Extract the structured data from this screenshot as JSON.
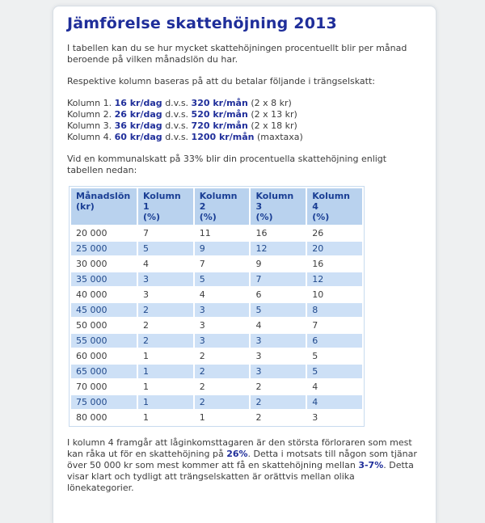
{
  "colors": {
    "page_bg": "#eef0f1",
    "card_bg": "#ffffff",
    "card_border": "#d8dfe5",
    "title_navy": "#1f2e9a",
    "accent_navy": "#1f2e9a",
    "body_text": "#3c3c3c",
    "table_border": "#c8dbef",
    "table_header_bg": "#b9d2ee",
    "table_header_text": "#1a3e94",
    "table_row_alt_bg": "#cde0f6",
    "table_row_alt_text": "#20498c",
    "row_text": "#3d3d3d"
  },
  "article": {
    "title": "Jämförelse skattehöjning 2013",
    "intro_1": "I tabellen kan du se hur mycket skattehöjningen procentuellt blir per månad beroende på vilken månadslön du har.",
    "intro_2": "Respektive kolumn baseras på att du betalar följande i trängselskatt:",
    "kolumn_lines": [
      {
        "label": "Kolumn 1.",
        "daily": "16 kr/dag",
        "connector": "d.v.s.",
        "monthly": "320 kr/mån",
        "note": "(2 x 8 kr)"
      },
      {
        "label": "Kolumn 2.",
        "daily": "26 kr/dag",
        "connector": "d.v.s.",
        "monthly": "520 kr/mån",
        "note": "(2 x 13 kr)"
      },
      {
        "label": "Kolumn 3.",
        "daily": "36 kr/dag",
        "connector": "d.v.s.",
        "monthly": "720 kr/mån",
        "note": "(2 x 18 kr)"
      },
      {
        "label": "Kolumn 4.",
        "daily": "60 kr/dag",
        "connector": "d.v.s.",
        "monthly": "1200 kr/mån",
        "note": "(maxtaxa)"
      }
    ],
    "pre_table": "Vid en kommunalskatt på 33% blir din procentuella skattehöjning enligt tabellen nedan:",
    "outro": {
      "part_1": "I kolumn 4 framgår att låginkomsttagaren är den största förloraren som mest kan råka ut för en skattehöjning på ",
      "highlight_1": "26%",
      "part_2": ". Detta i motsats till någon som tjänar över 50 000 kr som mest kommer att få en skattehöjning mellan ",
      "highlight_2": "3-7%",
      "part_3": ". Detta visar klart och tydligt att trängselskatten är orättvis mellan olika lönekategorier."
    }
  },
  "table": {
    "headers": [
      "Månadslön\n(kr)",
      "Kolumn 1\n(%)",
      "Kolumn 2\n(%)",
      "Kolumn 3\n(%)",
      "Kolumn 4\n(%)"
    ],
    "rows": [
      [
        "20 000",
        "7",
        "11",
        "16",
        "26"
      ],
      [
        "25 000",
        "5",
        "9",
        "12",
        "20"
      ],
      [
        "30 000",
        "4",
        "7",
        "9",
        "16"
      ],
      [
        "35 000",
        "3",
        "5",
        "7",
        "12"
      ],
      [
        "40 000",
        "3",
        "4",
        "6",
        "10"
      ],
      [
        "45 000",
        "2",
        "3",
        "5",
        "8"
      ],
      [
        "50 000",
        "2",
        "3",
        "4",
        "7"
      ],
      [
        "55 000",
        "2",
        "3",
        "3",
        "6"
      ],
      [
        "60 000",
        "1",
        "2",
        "3",
        "5"
      ],
      [
        "65 000",
        "1",
        "2",
        "3",
        "5"
      ],
      [
        "70 000",
        "1",
        "2",
        "2",
        "4"
      ],
      [
        "75 000",
        "1",
        "2",
        "2",
        "4"
      ],
      [
        "80 000",
        "1",
        "1",
        "2",
        "3"
      ]
    ]
  }
}
